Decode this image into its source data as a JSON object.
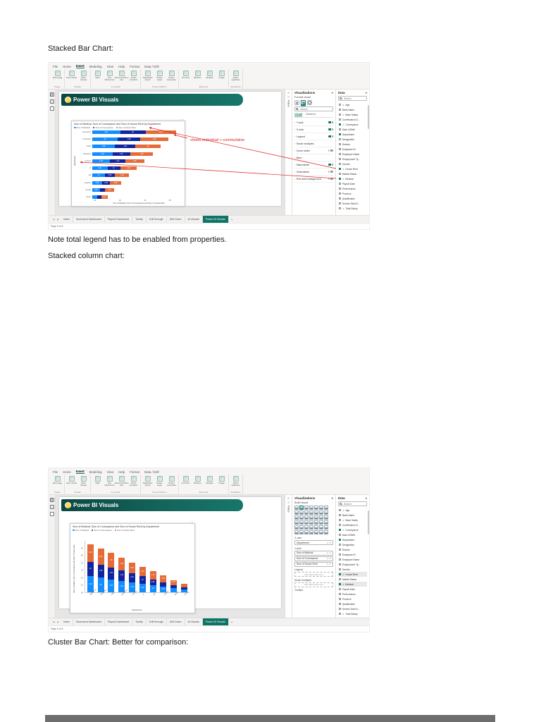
{
  "document": {
    "heading_stacked_bar": "Stacked Bar Chart:",
    "note_total_legend": "Note total legend has to be enabled from properties.",
    "heading_stacked_column": "Stacked column chart:",
    "heading_cluster_bar": "Cluster Bar Chart: Better for comparison:"
  },
  "ribbon": {
    "tabs": [
      {
        "label": "File"
      },
      {
        "label": "Home"
      },
      {
        "label": "Insert",
        "active": true
      },
      {
        "label": "Modeling"
      },
      {
        "label": "View"
      },
      {
        "label": "Help"
      },
      {
        "label": "Format"
      },
      {
        "label": "Data / Drill"
      }
    ],
    "groups": [
      {
        "label": "Pages",
        "buttons": [
          "New page"
        ]
      },
      {
        "label": "Visuals",
        "buttons": [
          "New visual",
          "More visuals"
        ]
      },
      {
        "label": "AI visuals",
        "buttons": [
          "Q&A",
          "Key influencers",
          "Decomposition tree",
          "Smart narrative"
        ]
      },
      {
        "label": "Power Platform",
        "buttons": [
          "Paginated report",
          "Power Apps",
          "Power Automate"
        ]
      },
      {
        "label": "Elements",
        "buttons": [
          "Text box",
          "Buttons",
          "Shapes",
          "Image"
        ]
      },
      {
        "label": "Sparklines",
        "buttons": [
          "Add a sparkline"
        ]
      }
    ]
  },
  "banner": {
    "title": "Power BI Visuals"
  },
  "filters_pane": {
    "collapse_icon": "«",
    "label": "Filters"
  },
  "viz_format_panel": {
    "title": "Visualizations",
    "collapse_icon": "»",
    "subtitle": "Format visual",
    "search_placeholder": "Search",
    "tabs": [
      {
        "label": "Visual",
        "active": true
      },
      {
        "label": "General"
      }
    ],
    "sections": [
      {
        "label": "Y-axis",
        "toggle": true,
        "on": true
      },
      {
        "label": "X-axis",
        "toggle": true,
        "on": true
      },
      {
        "label": "Legend",
        "toggle": true,
        "on": true
      },
      {
        "label": "Small multiples",
        "toggle": false
      },
      {
        "label": "Zoom slider",
        "toggle": true,
        "on": false
      },
      {
        "label": "Bars",
        "toggle": false
      },
      {
        "label": "Data labels",
        "toggle": true,
        "on": true
      },
      {
        "label": "Total labels",
        "toggle": true,
        "on": false
      },
      {
        "label": "Plot area background",
        "toggle": true,
        "on": false
      }
    ]
  },
  "viz_build_panel": {
    "title": "Visualizations",
    "collapse_icon": "»",
    "subtitle": "Build visual",
    "wells": [
      {
        "label": "X-axis",
        "items": [
          "Department"
        ]
      },
      {
        "label": "Y-axis",
        "items": [
          "Sum of Medical",
          "Sum of Conveyance",
          "Sum of House Rent"
        ]
      },
      {
        "label": "Legend",
        "items": [],
        "placeholder": "Add data fields here"
      },
      {
        "label": "Small multiples",
        "items": [],
        "placeholder": "Add data fields here"
      },
      {
        "label": "Tooltips",
        "items": []
      }
    ]
  },
  "data_panel": {
    "title": "Data",
    "collapse_icon": "»",
    "search_placeholder": "Search",
    "fields": [
      {
        "name": "Age",
        "sum": true
      },
      {
        "name": "Bank Name"
      },
      {
        "name": "Base Salary",
        "sum": true
      },
      {
        "name": "Confirmation D..."
      },
      {
        "name": "Conveyance",
        "sum": true,
        "checked": true
      },
      {
        "name": "Date of Birth"
      },
      {
        "name": "Department",
        "checked": true
      },
      {
        "name": "Designation"
      },
      {
        "name": "Division"
      },
      {
        "name": "Employee ID"
      },
      {
        "name": "Employee Name"
      },
      {
        "name": "Employment Ty..."
      },
      {
        "name": "Gender"
      },
      {
        "name": "House Rent",
        "sum": true,
        "checked": true,
        "hl2": true
      },
      {
        "name": "Marital Status"
      },
      {
        "name": "Medical",
        "sum": true,
        "checked": true,
        "hl2": true
      },
      {
        "name": "Payroll Date"
      },
      {
        "name": "Performance"
      },
      {
        "name": "Province"
      },
      {
        "name": "Qualification"
      },
      {
        "name": "Service Start D..."
      },
      {
        "name": "Total Salary",
        "sum": true
      }
    ]
  },
  "sheet_tabs": {
    "nav_prev": "◀",
    "nav_next": "▶",
    "tabs": [
      {
        "label": "Index"
      },
      {
        "label": "Scorecard Dashboard"
      },
      {
        "label": "Payroll Dashboard"
      },
      {
        "label": "Tooltip"
      },
      {
        "label": "Drill through"
      },
      {
        "label": "Drill Down"
      },
      {
        "label": "AI Visuals"
      },
      {
        "label": "Power BI Visuals",
        "active": true
      }
    ],
    "add_label": "+",
    "status": "Page 8 of 8"
  },
  "annotation": {
    "text": "shows individual + cummulative",
    "color": "#e02020"
  },
  "chart_data": [
    {
      "type": "bar",
      "orientation": "horizontal-stacked",
      "title": "Sum of Medical, Sum of Conveyance and Sum of House Rent by Department",
      "categories": [
        "Operations",
        "Production",
        "Sales",
        "Marketing",
        "Finance",
        "IT",
        "HR",
        "Logistics",
        "Quality",
        "Admin"
      ],
      "series": [
        {
          "name": "Sum of Medical",
          "color": "#118DFF",
          "values": [
            2200,
            2000,
            1800,
            1600,
            1400,
            1200,
            1000,
            800,
            600,
            400
          ]
        },
        {
          "name": "Sum of Conveyance",
          "color": "#12239E",
          "values": [
            2000,
            1800,
            1600,
            1400,
            1200,
            1000,
            800,
            600,
            400,
            300
          ]
        },
        {
          "name": "Sum of House Rent",
          "color": "#E66C37",
          "values": [
            2400,
            2200,
            2000,
            1800,
            1500,
            1300,
            1100,
            900,
            700,
            500
          ]
        }
      ],
      "xlabel": "Sum of Medical, Sum of Conveyance and Sum of House Rent",
      "ylabel": "Department",
      "x_ticks": [
        "0K",
        "2K",
        "4K",
        "6K"
      ],
      "xlim": [
        0,
        7000
      ],
      "legend_position": "top"
    },
    {
      "type": "bar",
      "orientation": "vertical-stacked",
      "title": "Sum of Medical, Sum of Conveyance and Sum of House Rent by Department",
      "categories": [
        "Operations",
        "Production",
        "Sales",
        "Marketing",
        "Finance",
        "IT",
        "HR",
        "Logistics",
        "Quality",
        "Admin"
      ],
      "series": [
        {
          "name": "Sum of Medical",
          "color": "#118DFF",
          "values": [
            2200,
            2000,
            1800,
            1600,
            1400,
            1200,
            1000,
            800,
            600,
            400
          ]
        },
        {
          "name": "Sum of Conveyance",
          "color": "#12239E",
          "values": [
            2000,
            1800,
            1600,
            1400,
            1200,
            1000,
            800,
            600,
            400,
            300
          ]
        },
        {
          "name": "Sum of House Rent",
          "color": "#E66C37",
          "values": [
            2400,
            2200,
            2000,
            1800,
            1500,
            1300,
            1100,
            900,
            700,
            500
          ]
        }
      ],
      "xlabel": "Department",
      "ylabel": "Sum of Medical, Sum of Conveyance and Sum of House Rent",
      "y_ticks": [
        "0K",
        "1K",
        "2K",
        "3K",
        "4K",
        "5K",
        "6K"
      ],
      "ylim": [
        0,
        7000
      ],
      "legend_position": "top"
    }
  ]
}
